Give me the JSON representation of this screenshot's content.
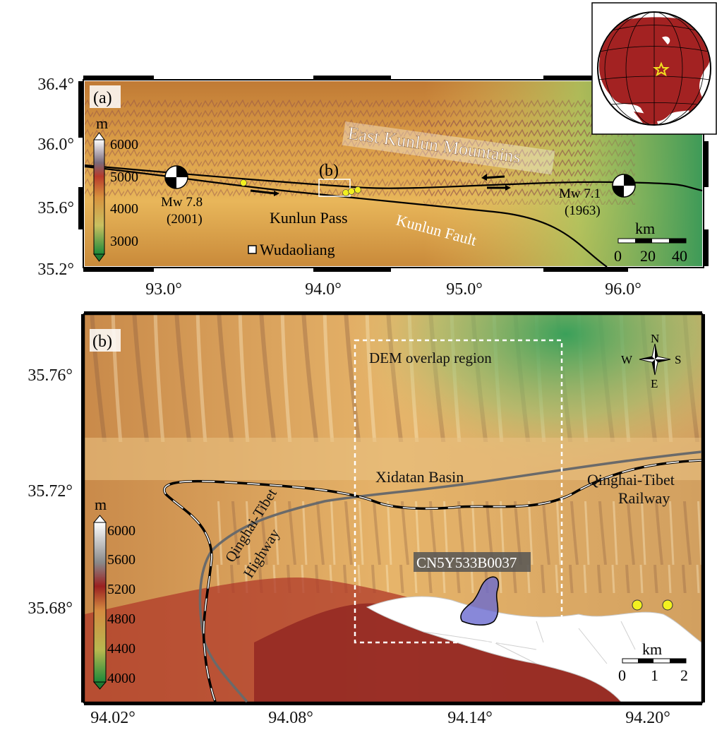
{
  "panel_a": {
    "label": "(a)",
    "y_ticks": [
      "36.4°",
      "36.0°",
      "35.6°",
      "35.2°"
    ],
    "x_ticks": [
      "93.0°",
      "94.0°",
      "95.0°",
      "96.0°"
    ],
    "colorbar": {
      "unit": "m",
      "ticks": [
        "6000",
        "5000",
        "4000",
        "3000"
      ]
    },
    "mountains_label": "East Kunlun Mountains",
    "box_label": "(b)",
    "pass_label": "Kunlun Pass",
    "fault_label": "Kunlun Fault",
    "town_label": "Wudaoliang",
    "quake_left": {
      "mag": "Mw 7.8",
      "year": "(2001)"
    },
    "quake_right": {
      "mag": "Mw 7.1",
      "year": "(1963)"
    },
    "scalebar": {
      "unit": "km",
      "ticks": [
        "0",
        "20",
        "40"
      ]
    }
  },
  "panel_b": {
    "label": "(b)",
    "y_ticks": [
      "35.76°",
      "35.72°",
      "35.68°"
    ],
    "x_ticks": [
      "94.02°",
      "94.08°",
      "94.14°",
      "94.20°"
    ],
    "colorbar": {
      "unit": "m",
      "ticks": [
        "6000",
        "5600",
        "5200",
        "4800",
        "4400",
        "4000"
      ]
    },
    "overlap_label": "DEM overlap region",
    "basin_label": "Xidatan Basin",
    "railway_label": [
      "Qinghai-Tibet",
      "Railway"
    ],
    "highway_label": [
      "Qinghai-Tibet",
      "Highway"
    ],
    "glacier_label": "CN5Y533B0037",
    "compass": {
      "n": "N",
      "s": "S",
      "e": "E",
      "w": "W"
    },
    "scalebar": {
      "unit": "km",
      "ticks": [
        "0",
        "1",
        "2"
      ]
    }
  },
  "colors": {
    "low": "#3a9a4a",
    "mid": "#e0b050",
    "high_red": "#a8302a",
    "ice": "#ffffff",
    "ocean": "#ffffff",
    "land": "#a32222",
    "point": "#f2f020"
  }
}
